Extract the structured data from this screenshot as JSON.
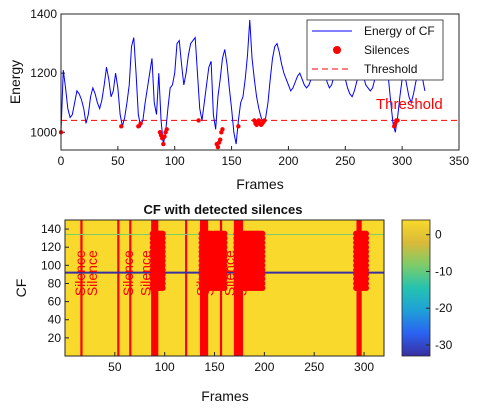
{
  "chart_data": [
    {
      "type": "line",
      "title": "",
      "xlabel": "Frames",
      "ylabel": "Energy",
      "xlim": [
        0,
        350
      ],
      "ylim": [
        940,
        1400
      ],
      "xticks": [
        "0",
        "50",
        "100",
        "150",
        "200",
        "250",
        "300",
        "350"
      ],
      "yticks": [
        "1000",
        "1200",
        "1400"
      ],
      "threshold": 1040,
      "threshold_label": "Threshold",
      "legend": {
        "placement": "top-right",
        "entries": [
          "Energy of CF",
          "Silences",
          "Threshold"
        ]
      },
      "series": [
        {
          "name": "Energy of CF",
          "color": "#0000ff",
          "x": [
            0,
            2,
            4,
            6,
            8,
            10,
            12,
            14,
            16,
            18,
            20,
            22,
            24,
            26,
            28,
            30,
            32,
            34,
            36,
            38,
            40,
            42,
            44,
            46,
            48,
            50,
            52,
            54,
            56,
            58,
            60,
            62,
            64,
            66,
            68,
            70,
            72,
            74,
            76,
            78,
            80,
            82,
            84,
            86,
            88,
            90,
            92,
            94,
            96,
            98,
            100,
            102,
            104,
            106,
            108,
            110,
            112,
            114,
            116,
            118,
            120,
            122,
            124,
            126,
            128,
            130,
            132,
            134,
            136,
            138,
            140,
            142,
            144,
            146,
            148,
            150,
            152,
            154,
            156,
            158,
            160,
            162,
            164,
            166,
            168,
            170,
            172,
            174,
            176,
            178,
            180,
            182,
            184,
            186,
            188,
            190,
            192,
            194,
            196,
            198,
            200,
            202,
            204,
            206,
            208,
            210,
            212,
            214,
            216,
            218,
            220,
            222,
            224,
            226,
            228,
            230,
            232,
            234,
            236,
            238,
            240,
            242,
            244,
            246,
            248,
            250,
            252,
            254,
            256,
            258,
            260,
            262,
            264,
            266,
            268,
            270,
            272,
            274,
            276,
            278,
            280,
            282,
            284,
            286,
            288,
            290,
            292,
            294,
            296,
            298,
            300,
            302,
            304,
            306,
            308,
            310,
            312,
            314,
            316,
            318,
            320
          ],
          "y": [
            1000,
            1210,
            1150,
            1080,
            1050,
            1060,
            1100,
            1140,
            1130,
            1110,
            1080,
            1030,
            1060,
            1120,
            1150,
            1130,
            1100,
            1080,
            1110,
            1160,
            1220,
            1180,
            1120,
            1140,
            1200,
            1150,
            1060,
            1020,
            1050,
            1100,
            1160,
            1290,
            1320,
            1200,
            1060,
            1020,
            1040,
            1100,
            1150,
            1200,
            1250,
            1100,
            1060,
            1200,
            1040,
            960,
            1000,
            1080,
            1150,
            1160,
            1200,
            1300,
            1310,
            1230,
            1160,
            1200,
            1260,
            1300,
            1310,
            1320,
            1200,
            1080,
            1040,
            1100,
            1160,
            1220,
            1240,
            1060,
            1010,
            1120,
            1180,
            1250,
            1280,
            1230,
            1150,
            1080,
            1000,
            960,
            1040,
            1100,
            1120,
            1180,
            1260,
            1380,
            1250,
            1180,
            1120,
            1080,
            1050,
            1030,
            1050,
            1100,
            1180,
            1250,
            1290,
            1300,
            1270,
            1230,
            1200,
            1180,
            1160,
            1140,
            1150,
            1170,
            1190,
            1200,
            1180,
            1160,
            1150,
            1160,
            1180,
            1200,
            1220,
            1260,
            1280,
            1250,
            1200,
            1170,
            1150,
            1160,
            1190,
            1220,
            1240,
            1230,
            1210,
            1180,
            1150,
            1130,
            1120,
            1140,
            1170,
            1200,
            1210,
            1190,
            1160,
            1150,
            1140,
            1150,
            1180,
            1210,
            1230,
            1250,
            1240,
            1220,
            1180,
            1100,
            1030,
            1000,
            1050,
            1120,
            1180,
            1200,
            1160,
            1120,
            1100,
            1130,
            1170,
            1200,
            1220,
            1180,
            1140
          ]
        },
        {
          "name": "Silences",
          "color": "#ff0000",
          "x": [
            0,
            53,
            68,
            70,
            87,
            88,
            89,
            90,
            91,
            92,
            93,
            121,
            137,
            138,
            139,
            140,
            141,
            142,
            156,
            170,
            171,
            172,
            173,
            174,
            175,
            176,
            177,
            178,
            179,
            293,
            294,
            295,
            296
          ],
          "y": [
            1000,
            1020,
            1020,
            1030,
            1000,
            990,
            980,
            960,
            985,
            1000,
            1010,
            1040,
            960,
            950,
            965,
            975,
            1000,
            1010,
            1020,
            1040,
            1030,
            1025,
            1035,
            1040,
            1030,
            1025,
            1030,
            1035,
            1040,
            1020,
            1030,
            1040,
            1040
          ]
        }
      ]
    },
    {
      "type": "heatmap",
      "title": "CF with detected silences",
      "xlabel": "Frames",
      "ylabel": "CF",
      "xlim": [
        0,
        320
      ],
      "ylim": [
        0,
        150
      ],
      "xticks": [
        "50",
        "100",
        "150",
        "200",
        "250",
        "300"
      ],
      "yticks": [
        "20",
        "40",
        "60",
        "80",
        "100",
        "120",
        "140"
      ],
      "colorbar": {
        "colors": [
          "#3a2fa0",
          "#2b62f2",
          "#1ea0d8",
          "#25c3b0",
          "#7ccc6a",
          "#d9ba38",
          "#f9d92b"
        ],
        "range": [
          -33,
          4
        ],
        "ticks": [
          "0",
          "-10",
          "-20",
          "-30"
        ]
      },
      "rows": [
        {
          "name": "line-92",
          "y": 92,
          "color": "#3a2fa0"
        },
        {
          "name": "line-134",
          "y": 134,
          "color": "#7ccc6a"
        }
      ],
      "silence_frames": [
        16,
        53,
        65,
        87,
        88,
        89,
        90,
        91,
        92,
        121,
        136,
        137,
        138,
        139,
        140,
        141,
        142,
        156,
        170,
        171,
        172,
        173,
        174,
        175,
        176,
        177,
        293,
        294,
        295,
        296
      ],
      "silence_label": "Silence",
      "labels_x": [
        16,
        28,
        64,
        82,
        138,
        145,
        166,
        178
      ],
      "markers_x": [
        88,
        90,
        92,
        94,
        96,
        98,
        137,
        139,
        141,
        143,
        145,
        147,
        150,
        152,
        154,
        156,
        158,
        160,
        172,
        174,
        176,
        178,
        180,
        182,
        184,
        186,
        188,
        190,
        192,
        194,
        196,
        198,
        292,
        294,
        296,
        298,
        300,
        302
      ],
      "markers_y": [
        75,
        80,
        85,
        90,
        95,
        100,
        105,
        110,
        115,
        120,
        125,
        130,
        135
      ]
    }
  ]
}
